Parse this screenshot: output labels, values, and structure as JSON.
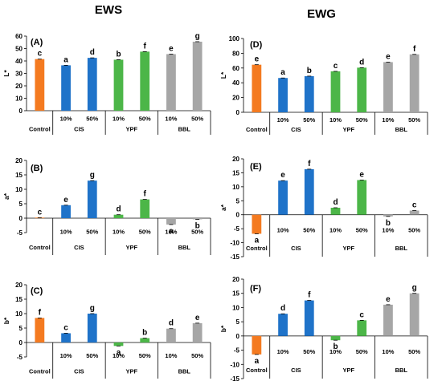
{
  "headers": {
    "left": "EWS",
    "right": "EWG"
  },
  "colors": {
    "control": "#F47A20",
    "CIS": "#1F73C9",
    "YPF": "#4CB648",
    "BBL": "#A6A6A6"
  },
  "groups": {
    "control": "Control",
    "CIS": "CIS",
    "YPF": "YPF",
    "BBL": "BBL",
    "low": "10%",
    "high": "50%"
  },
  "chart_data": [
    {
      "type": "bar",
      "panel": "(A)",
      "column": "EWS",
      "ylabel": "L*",
      "ylim": [
        0,
        60
      ],
      "yticks": [
        0,
        10,
        20,
        30,
        40,
        50,
        60
      ],
      "categories": [
        "Control",
        "CIS 10%",
        "CIS 50%",
        "YPF 10%",
        "YPF 50%",
        "BBL 10%",
        "BBL 50%"
      ],
      "values": [
        41.5,
        36.5,
        42.5,
        41,
        47.5,
        45.5,
        55.5
      ],
      "letters": [
        "c",
        "a",
        "d",
        "b",
        "f",
        "e",
        "g"
      ]
    },
    {
      "type": "bar",
      "panel": "(B)",
      "column": "EWS",
      "ylabel": "a*",
      "ylim": [
        -5,
        20
      ],
      "yticks": [
        -5,
        0,
        5,
        10,
        15,
        20
      ],
      "categories": [
        "Control",
        "CIS 10%",
        "CIS 50%",
        "YPF 10%",
        "YPF 50%",
        "BBL 10%",
        "BBL 50%"
      ],
      "values": [
        0.2,
        4.5,
        13,
        1.2,
        6.5,
        -2.2,
        -0.4
      ],
      "letters": [
        "c",
        "e",
        "g",
        "d",
        "f",
        "a",
        "b"
      ]
    },
    {
      "type": "bar",
      "panel": "(C)",
      "column": "EWS",
      "ylabel": "b*",
      "ylim": [
        -5,
        20
      ],
      "yticks": [
        -5,
        0,
        5,
        10,
        15,
        20
      ],
      "categories": [
        "Control",
        "CIS 10%",
        "CIS 50%",
        "YPF 10%",
        "YPF 50%",
        "BBL 10%",
        "BBL 50%"
      ],
      "values": [
        8.5,
        3.2,
        10,
        -1.2,
        1.5,
        4.8,
        6.7
      ],
      "letters": [
        "f",
        "c",
        "g",
        "a",
        "b",
        "d",
        "e"
      ]
    },
    {
      "type": "bar",
      "panel": "(D)",
      "column": "EWG",
      "ylabel": "L*",
      "ylim": [
        0,
        100
      ],
      "yticks": [
        0,
        20,
        40,
        60,
        80,
        100
      ],
      "categories": [
        "Control",
        "CIS 10%",
        "CIS 50%",
        "YPF 10%",
        "YPF 50%",
        "BBL 10%",
        "BBL 50%"
      ],
      "values": [
        64.5,
        46.5,
        49,
        55.5,
        60.5,
        68,
        78.5
      ],
      "letters": [
        "e",
        "a",
        "b",
        "c",
        "d",
        "e",
        "f"
      ]
    },
    {
      "type": "bar",
      "panel": "(E)",
      "column": "EWG",
      "ylabel": "a*",
      "ylim": [
        -15,
        20
      ],
      "yticks": [
        -15,
        -10,
        -5,
        0,
        5,
        10,
        15,
        20
      ],
      "categories": [
        "Control",
        "CIS 10%",
        "CIS 50%",
        "YPF 10%",
        "YPF 50%",
        "BBL 10%",
        "BBL 50%"
      ],
      "values": [
        -6.8,
        12.2,
        16.3,
        2.5,
        12.4,
        -0.6,
        1.5
      ],
      "letters": [
        "a",
        "e",
        "f",
        "d",
        "e",
        "b",
        "c"
      ]
    },
    {
      "type": "bar",
      "panel": "(F)",
      "column": "EWG",
      "ylabel": "b*",
      "ylim": [
        -15,
        20
      ],
      "yticks": [
        -15,
        -10,
        -5,
        0,
        5,
        10,
        15,
        20
      ],
      "categories": [
        "Control",
        "CIS 10%",
        "CIS 50%",
        "YPF 10%",
        "YPF 50%",
        "BBL 10%",
        "BBL 50%"
      ],
      "values": [
        -6.5,
        7.8,
        12.5,
        -1.5,
        5.5,
        11,
        15
      ],
      "letters": [
        "a",
        "d",
        "f",
        "b",
        "c",
        "e",
        "g"
      ]
    }
  ]
}
